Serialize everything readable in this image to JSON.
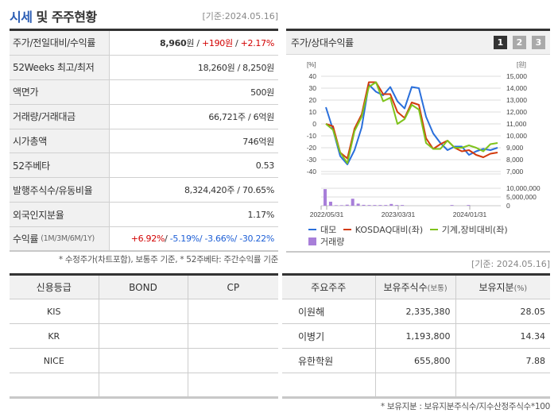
{
  "header": {
    "title_accent": "시세",
    "title_rest": " 및 주주현황",
    "base_date": "[기준:2024.05.16]"
  },
  "info": {
    "rows": [
      {
        "label": "주가/전일대비/수익률",
        "price": "8,960",
        "price_unit": "원",
        "sep1": " / ",
        "change": "+190원",
        "sep2": " / ",
        "rate": "+2.17%"
      },
      {
        "label": "52Weeks 최고/최저",
        "value": "18,260원 / 8,250원"
      },
      {
        "label": "액면가",
        "value": "500원"
      },
      {
        "label": "거래량/거래대금",
        "value": "66,721주 / 6억원"
      },
      {
        "label": "시가총액",
        "value": "746억원"
      },
      {
        "label": "52주베타",
        "value": "0.53"
      },
      {
        "label": "발행주식수/유동비율",
        "value": "8,324,420주 / 70.65%"
      },
      {
        "label": "외국인지분율",
        "value": "1.17%"
      },
      {
        "label": "수익률",
        "label_sub": "(1M/3M/6M/1Y)",
        "r1m": "+6.92%",
        "r3m": "-5.19%",
        "r6m": "-3.66%",
        "r1y": "-30.22%"
      }
    ],
    "note": "* 수정주가(차트포함), 보통주 기준, * 52주베타: 주간수익률 기준"
  },
  "chart": {
    "title": "주가/상대수익률",
    "tabs": [
      "1",
      "2",
      "3"
    ],
    "active_tab": 0
  },
  "chart_data": {
    "type": "line",
    "title": "주가/상대수익률",
    "left_axis": {
      "label": "[%]",
      "ticks": [
        40,
        30,
        20,
        10,
        0,
        -10,
        -20,
        -30,
        -40
      ],
      "range": [
        -40,
        40
      ]
    },
    "right_axis": {
      "label": "[원]",
      "ticks": [
        "15,000",
        "14,000",
        "13,000",
        "12,000",
        "11,000",
        "10,000",
        "9,000",
        "8,000",
        "7,000"
      ],
      "range": [
        7000,
        15000
      ]
    },
    "volume_axis": {
      "ticks": [
        "10,000,000",
        "5,000,000",
        "0"
      ]
    },
    "x_ticks": [
      "2022/05/31",
      "2023/03/31",
      "2024/01/31"
    ],
    "series": [
      {
        "name": "대모",
        "color": "#2a6fdb",
        "values": [
          14,
          -5,
          -27,
          -34,
          -22,
          -3,
          33,
          27,
          24,
          31,
          19,
          13,
          31,
          30,
          6,
          -8,
          -16,
          -22,
          -19,
          -19,
          -26,
          -23,
          -21,
          -22,
          -20
        ]
      },
      {
        "name": "KOSDAQ대비(좌)",
        "color": "#d33a0c",
        "values": [
          0,
          -2,
          -24,
          -29,
          -4,
          8,
          35,
          35,
          25,
          25,
          10,
          5,
          18,
          16,
          -12,
          -21,
          -17,
          -14,
          -20,
          -23,
          -22,
          -26,
          -28,
          -25,
          -24
        ]
      },
      {
        "name": "기계,장비대비(좌)",
        "color": "#7fc31c",
        "values": [
          0,
          -5,
          -24,
          -33,
          -6,
          6,
          31,
          35,
          19,
          22,
          0,
          4,
          16,
          12,
          -16,
          -21,
          -21,
          -14,
          -20,
          -20,
          -18,
          -20,
          -23,
          -17,
          -16
        ]
      }
    ],
    "volume": {
      "name": "거래량",
      "color": "#a87fd9",
      "values": [
        9500000,
        2300000,
        300000,
        300000,
        600000,
        4000000,
        1200000,
        500000,
        400000,
        400000,
        400000,
        400000,
        1000000,
        400000,
        400000,
        0,
        0,
        0,
        0,
        0,
        0,
        0,
        0,
        400000,
        0,
        0,
        400000,
        0,
        0,
        0,
        0,
        0
      ]
    },
    "legend": [
      "대모",
      "KOSDAQ대비(좌)",
      "기계,장비대비(좌)",
      "거래량"
    ]
  },
  "holders_date": "[기준: 2024.05.16]",
  "credit": {
    "headers": [
      "신용등급",
      "BOND",
      "CP"
    ],
    "rows": [
      [
        "KIS",
        "",
        ""
      ],
      [
        "KR",
        "",
        ""
      ],
      [
        "NICE",
        "",
        ""
      ],
      [
        "",
        "",
        ""
      ]
    ]
  },
  "holders": {
    "headers": [
      "주요주주",
      "보유주식수",
      "(보통)",
      "보유지분",
      "(%)"
    ],
    "rows": [
      [
        "이원해",
        "2,335,380",
        "28.05"
      ],
      [
        "이병기",
        "1,193,800",
        "14.34"
      ],
      [
        "유한학원",
        "655,800",
        "7.88"
      ],
      [
        "",
        "",
        ""
      ]
    ],
    "note": "* 보유지분 : 보유지분주식수/지수산정주식수*100"
  }
}
